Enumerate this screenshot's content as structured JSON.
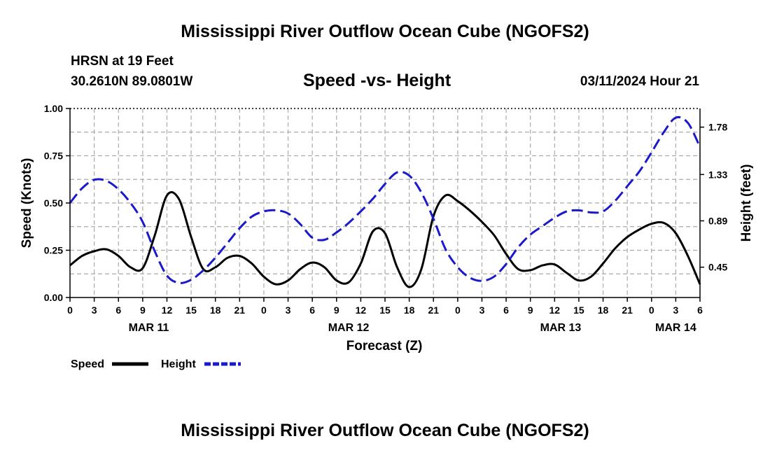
{
  "header": {
    "title": "Mississippi River Outflow Ocean Cube (NGOFS2)",
    "station": "HRSN at 19 Feet",
    "coords": "30.2610N  89.0801W",
    "subtitle": "Speed -vs- Height",
    "datetime": "03/11/2024 Hour 21"
  },
  "footer": {
    "title": "Mississippi River Outflow Ocean Cube (NGOFS2)"
  },
  "legend": {
    "speed_label": "Speed",
    "height_label": "Height"
  },
  "colors": {
    "speed": "#000000",
    "height": "#1a1acc",
    "grid": "#aaaaaa"
  },
  "chart_data": {
    "type": "line",
    "title": "Speed -vs- Height",
    "xlabel": "Forecast (Z)",
    "ylabel": "Speed (Knots)",
    "y2label": "Height (feet)",
    "xlim": [
      0,
      78
    ],
    "ylim": [
      0,
      1.0
    ],
    "y2lim": [
      0.162,
      1.957
    ],
    "x_ticks": [
      0,
      3,
      6,
      9,
      12,
      15,
      18,
      21,
      24,
      27,
      30,
      33,
      36,
      39,
      42,
      45,
      48,
      51,
      54,
      57,
      60,
      63,
      66,
      69,
      72,
      75,
      78
    ],
    "x_tick_labels": [
      "0",
      "3",
      "6",
      "9",
      "12",
      "15",
      "18",
      "21",
      "0",
      "3",
      "6",
      "9",
      "12",
      "15",
      "18",
      "21",
      "0",
      "3",
      "6",
      "9",
      "12",
      "15",
      "18",
      "21",
      "0",
      "3",
      "6"
    ],
    "date_labels": [
      {
        "label": "MAR 11",
        "x": 9.75
      },
      {
        "label": "MAR 12",
        "x": 34.5
      },
      {
        "label": "MAR 13",
        "x": 60.75
      },
      {
        "label": "MAR 14",
        "x": 75
      }
    ],
    "y_ticks": [
      0.0,
      0.25,
      0.5,
      0.75,
      1.0
    ],
    "y_tick_labels": [
      "0.00",
      "0.25",
      "0.50",
      "0.75",
      "1.00"
    ],
    "y2_ticks": [
      0.45,
      0.89,
      1.33,
      1.78
    ],
    "y2_tick_labels": [
      "0.45",
      "0.89",
      "1.33",
      "1.78"
    ],
    "grid": true,
    "series": [
      {
        "name": "Speed",
        "axis": "left",
        "style": "solid",
        "x": [
          0,
          1.5,
          3,
          4.5,
          6,
          7.5,
          9,
          10.5,
          12,
          13.5,
          15,
          16.5,
          18,
          19.5,
          21,
          22.5,
          24,
          25.5,
          27,
          28.5,
          30,
          31.5,
          33,
          34.5,
          36,
          37.5,
          39,
          40.5,
          42,
          43.5,
          45,
          46.5,
          48,
          49.5,
          51,
          52.5,
          54,
          55.5,
          57,
          58.5,
          60,
          61.5,
          63,
          64.5,
          66,
          67.5,
          69,
          70.5,
          72,
          73.5,
          75,
          76.5,
          78
        ],
        "y": [
          0.17,
          0.22,
          0.245,
          0.255,
          0.22,
          0.16,
          0.155,
          0.33,
          0.54,
          0.52,
          0.32,
          0.15,
          0.16,
          0.21,
          0.22,
          0.18,
          0.11,
          0.07,
          0.09,
          0.15,
          0.185,
          0.16,
          0.09,
          0.08,
          0.18,
          0.35,
          0.34,
          0.16,
          0.055,
          0.15,
          0.43,
          0.54,
          0.51,
          0.46,
          0.4,
          0.33,
          0.23,
          0.15,
          0.145,
          0.17,
          0.175,
          0.13,
          0.09,
          0.11,
          0.18,
          0.26,
          0.32,
          0.36,
          0.39,
          0.395,
          0.34,
          0.22,
          0.07
        ]
      },
      {
        "name": "Height",
        "axis": "right",
        "style": "dashed",
        "x": [
          0,
          1.5,
          3,
          4.5,
          6,
          7.5,
          9,
          10.5,
          12,
          13.5,
          15,
          16.5,
          18,
          19.5,
          21,
          22.5,
          24,
          25.5,
          27,
          28.5,
          30,
          31.5,
          33,
          34.5,
          36,
          37.5,
          39,
          40.5,
          42,
          43.5,
          45,
          46.5,
          48,
          49.5,
          51,
          52.5,
          54,
          55.5,
          57,
          58.5,
          60,
          61.5,
          63,
          64.5,
          66,
          67.5,
          69,
          70.5,
          72,
          73.5,
          75,
          76.5,
          78
        ],
        "y": [
          1.06,
          1.2,
          1.28,
          1.27,
          1.19,
          1.06,
          0.88,
          0.6,
          0.37,
          0.3,
          0.33,
          0.42,
          0.54,
          0.68,
          0.82,
          0.93,
          0.98,
          0.99,
          0.96,
          0.86,
          0.73,
          0.71,
          0.78,
          0.87,
          0.98,
          1.1,
          1.24,
          1.35,
          1.32,
          1.16,
          0.91,
          0.62,
          0.45,
          0.35,
          0.32,
          0.36,
          0.48,
          0.64,
          0.76,
          0.84,
          0.92,
          0.98,
          0.99,
          0.97,
          0.98,
          1.08,
          1.22,
          1.36,
          1.54,
          1.73,
          1.87,
          1.82,
          1.59
        ]
      }
    ]
  }
}
